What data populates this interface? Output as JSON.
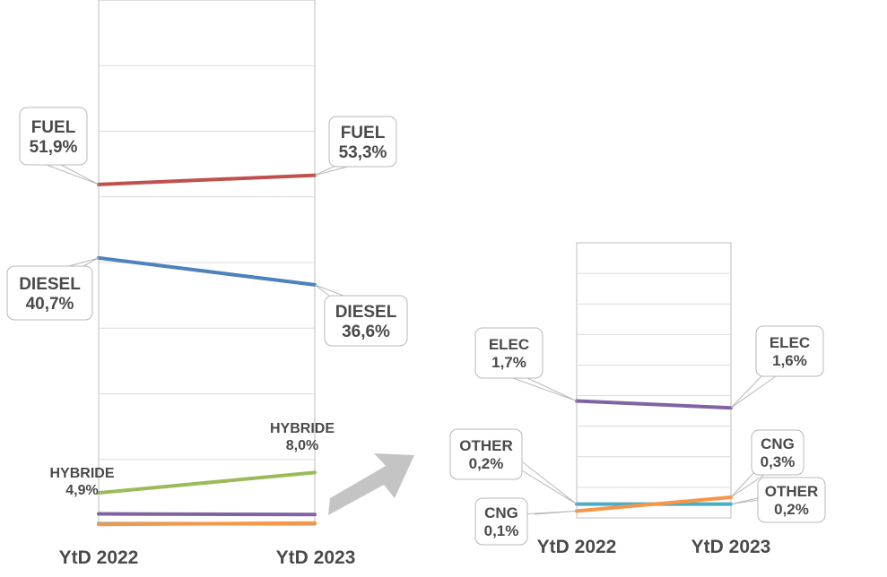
{
  "chart_data": [
    {
      "type": "line",
      "categories": [
        "YtD 2022",
        "YtD 2023"
      ],
      "ylim": [
        0,
        80
      ],
      "grid": true,
      "series": [
        {
          "name": "FUEL",
          "values": [
            51.9,
            53.3
          ],
          "labels": [
            "51,9%",
            "53,3%"
          ],
          "color": "#c0504d"
        },
        {
          "name": "DIESEL",
          "values": [
            40.7,
            36.6
          ],
          "labels": [
            "40,7%",
            "36,6%"
          ],
          "color": "#4f81bd"
        },
        {
          "name": "HYBRIDE",
          "values": [
            4.9,
            8.0
          ],
          "labels": [
            "4,9%",
            "8,0%"
          ],
          "color": "#9bbb59"
        },
        {
          "name": "ELEC",
          "values": [
            1.7,
            1.6
          ],
          "color": "#8064a2"
        },
        {
          "name": "OTHER",
          "values": [
            0.2,
            0.2
          ],
          "color": "#4bacc6"
        },
        {
          "name": "CNG",
          "values": [
            0.1,
            0.3
          ],
          "color": "#f79646"
        }
      ]
    },
    {
      "type": "line",
      "categories": [
        "YtD 2022",
        "YtD 2023"
      ],
      "ylim": [
        0,
        4
      ],
      "grid": true,
      "series": [
        {
          "name": "ELEC",
          "values": [
            1.7,
            1.6
          ],
          "labels": [
            "1,7%",
            "1,6%"
          ],
          "color": "#8064a2"
        },
        {
          "name": "OTHER",
          "values": [
            0.2,
            0.2
          ],
          "labels": [
            "0,2%",
            "0,2%"
          ],
          "color": "#4bacc6"
        },
        {
          "name": "CNG",
          "values": [
            0.1,
            0.3
          ],
          "labels": [
            "0,1%",
            "0,3%"
          ],
          "color": "#f79646"
        }
      ]
    }
  ],
  "arrow_color": "#c4c4c4"
}
